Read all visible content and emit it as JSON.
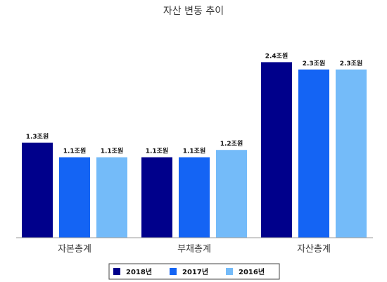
{
  "chart_data": {
    "type": "bar",
    "title": "자산 변동 추이",
    "categories": [
      "자본총계",
      "부채총계",
      "자산총계"
    ],
    "unit": "조원",
    "ylim": [
      0,
      2.6
    ],
    "grid": false,
    "legend_position": "bottom",
    "series": [
      {
        "name": "2018년",
        "color": "#00008b",
        "values": [
          1.3,
          1.1,
          2.4
        ],
        "labels": [
          "1.3조원",
          "1.1조원",
          "2.4조원"
        ]
      },
      {
        "name": "2017년",
        "color": "#1464f4",
        "values": [
          1.1,
          1.1,
          2.3
        ],
        "labels": [
          "1.1조원",
          "1.1조원",
          "2.3조원"
        ]
      },
      {
        "name": "2016년",
        "color": "#74bbf9",
        "values": [
          1.1,
          1.2,
          2.3
        ],
        "labels": [
          "1.1조원",
          "1.2조원",
          "2.3조원"
        ]
      }
    ]
  }
}
